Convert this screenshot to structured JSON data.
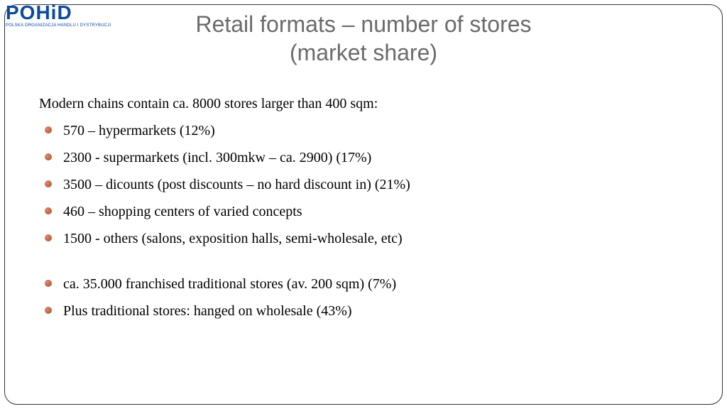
{
  "logo": {
    "main": "POHiD",
    "sub": "POLSKA ORGANIZACJA HANDLU I DYSTRYBUCJI",
    "color": "#0b4a9e"
  },
  "title": {
    "line1": "Retail formats – number of stores",
    "line2": "(market share)",
    "color": "#6b6b6b",
    "fontsize": 32
  },
  "content": {
    "intro": "Modern chains contain ca. 8000 stores larger than 400 sqm:",
    "bullets_group1": [
      "570 – hypermarkets (12%)",
      "2300 - supermarkets (incl. 300mkw – ca. 2900) (17%)",
      "3500 – dicounts (post discounts – no hard discount in) (21%)",
      "460 – shopping centers of varied concepts",
      "1500 - others (salons, exposition halls, semi-wholesale, etc)"
    ],
    "bullets_group2": [
      "ca. 35.000 franchised traditional stores (av. 200 sqm) (7%)",
      "Plus traditional stores: hanged on wholesale  (43%)"
    ],
    "bullet_color": "#a84a2a",
    "text_color": "#000000",
    "fontsize": 20
  },
  "frame": {
    "border_color": "#333333",
    "border_radius": 18,
    "background": "#ffffff"
  }
}
